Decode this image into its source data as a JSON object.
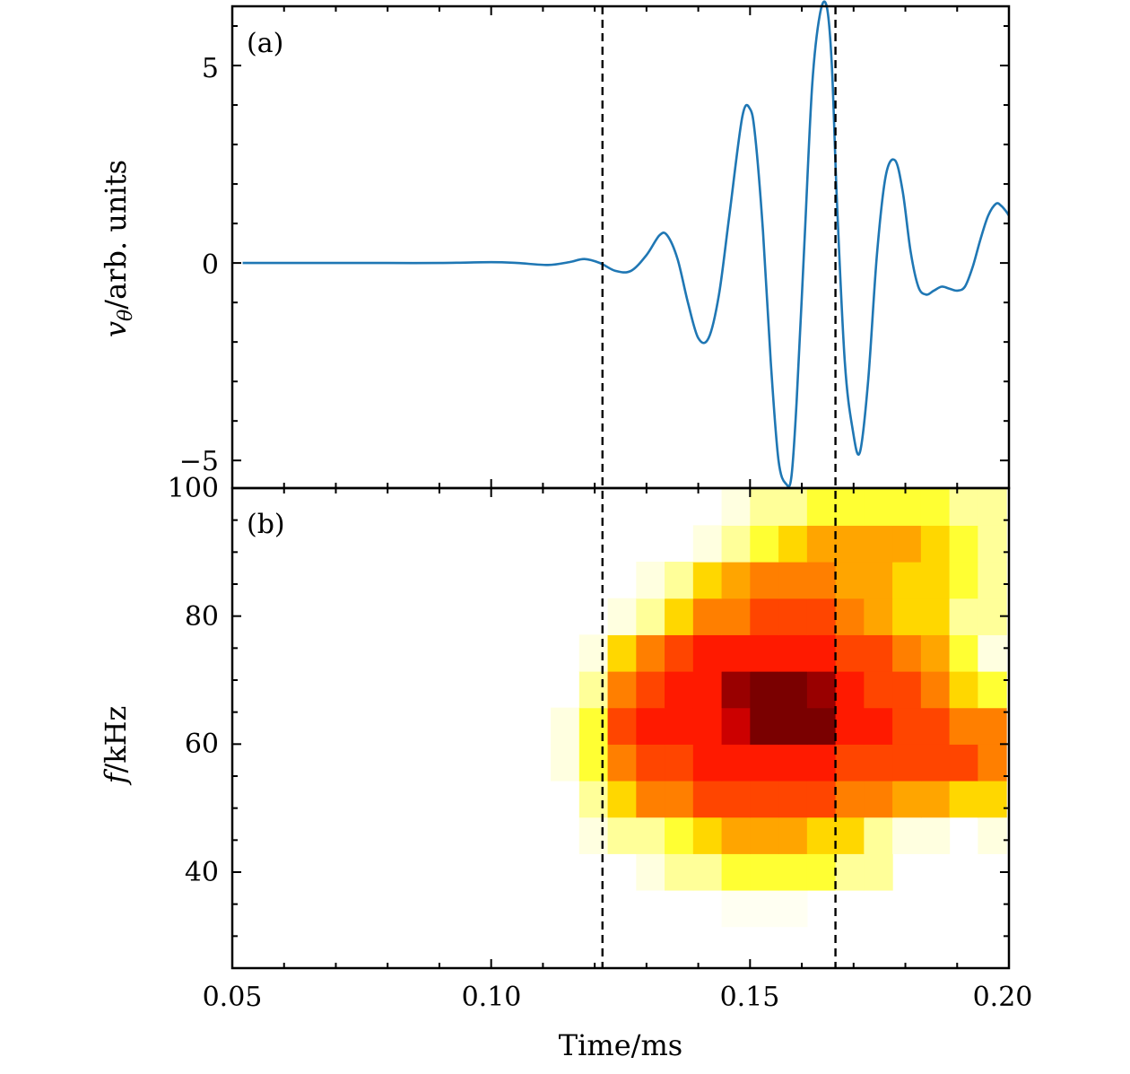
{
  "chart_data": [
    {
      "type": "line",
      "panel_label": "(a)",
      "ylabel_var": "v",
      "ylabel_sub": "θ",
      "ylabel_rest": "/arb. units",
      "xlim": [
        0.05,
        0.2
      ],
      "ylim": [
        -5.7,
        6.5
      ],
      "yticks": [
        {
          "value": 5,
          "label": "5"
        },
        {
          "value": 0,
          "label": "0"
        },
        {
          "value": -5,
          "label": "−5"
        }
      ],
      "line_color": "#1f77b4",
      "series": [
        {
          "name": "v_theta",
          "x": [
            0.052,
            0.06,
            0.07,
            0.08,
            0.09,
            0.1,
            0.105,
            0.111,
            0.115,
            0.118,
            0.121,
            0.124,
            0.127,
            0.13,
            0.1325,
            0.134,
            0.136,
            0.138,
            0.14,
            0.142,
            0.144,
            0.146,
            0.1485,
            0.15,
            0.151,
            0.1525,
            0.154,
            0.1555,
            0.157,
            0.158,
            0.159,
            0.1605,
            0.162,
            0.1635,
            0.1648,
            0.1658,
            0.1668,
            0.1683,
            0.1698,
            0.1712,
            0.1728,
            0.1745,
            0.1762,
            0.178,
            0.1795,
            0.181,
            0.1825,
            0.184,
            0.1855,
            0.187,
            0.1885,
            0.19,
            0.1915,
            0.193,
            0.1945,
            0.196,
            0.1975,
            0.1985,
            0.1995,
            0.2
          ],
          "y": [
            0.0,
            0.0,
            0.0,
            0.0,
            0.0,
            0.02,
            0.0,
            -0.05,
            0.02,
            0.1,
            0.0,
            -0.2,
            -0.2,
            0.2,
            0.7,
            0.7,
            0.1,
            -1.0,
            -1.9,
            -1.9,
            -0.8,
            1.2,
            3.7,
            3.9,
            3.2,
            0.8,
            -2.5,
            -5.0,
            -5.6,
            -5.4,
            -3.5,
            0.5,
            4.5,
            6.3,
            6.5,
            5.0,
            1.5,
            -2.5,
            -4.2,
            -4.8,
            -3.0,
            0.2,
            2.2,
            2.6,
            1.8,
            0.3,
            -0.6,
            -0.8,
            -0.7,
            -0.6,
            -0.65,
            -0.7,
            -0.6,
            -0.1,
            0.6,
            1.2,
            1.5,
            1.45,
            1.3,
            1.2
          ]
        }
      ],
      "vlines": [
        0.1215,
        0.1665
      ]
    },
    {
      "type": "heatmap",
      "panel_label": "(b)",
      "ylabel_var": "f",
      "ylabel_rest": "/kHz",
      "xlabel": "Time/ms",
      "xlim": [
        0.05,
        0.2
      ],
      "ylim": [
        25,
        100
      ],
      "x_edges": [
        0.1115,
        0.117,
        0.1225,
        0.128,
        0.1335,
        0.139,
        0.1445,
        0.15,
        0.1555,
        0.161,
        0.1665,
        0.172,
        0.1775,
        0.183,
        0.1885,
        0.194,
        0.1995
      ],
      "y_edges": [
        31.5,
        37.2,
        42.9,
        48.6,
        54.3,
        60.0,
        65.7,
        71.4,
        77.1,
        82.8,
        88.5,
        94.2,
        99.9
      ],
      "colormap": [
        "#ffffff",
        "#ffffe0",
        "#ffff99",
        "#ffff33",
        "#ffd700",
        "#ffa500",
        "#ff7f00",
        "#ff4500",
        "#ff1a00",
        "#cc0000",
        "#990000",
        "#7a0000"
      ],
      "z": [
        [
          0,
          0,
          0,
          0,
          0,
          0,
          0.4,
          0.4,
          0.4,
          0,
          0,
          0,
          0,
          0,
          0,
          0
        ],
        [
          0,
          0,
          0,
          1,
          2,
          2,
          3,
          3,
          3,
          3,
          2,
          2,
          0,
          0,
          0,
          0
        ],
        [
          0,
          1,
          2,
          2,
          3,
          4,
          5,
          5,
          5,
          4,
          4,
          2,
          1,
          1,
          0,
          1
        ],
        [
          0,
          2,
          4,
          6,
          6,
          7,
          7,
          7,
          7,
          7,
          6,
          6,
          5,
          5,
          4,
          4
        ],
        [
          1,
          3,
          6,
          7,
          7,
          8,
          8,
          8,
          8,
          8,
          7,
          7,
          7,
          7,
          7,
          6
        ],
        [
          1,
          3,
          7,
          8,
          8,
          8,
          9,
          11,
          11,
          11,
          8,
          8,
          7,
          7,
          6,
          6
        ],
        [
          0,
          2,
          6,
          7,
          8,
          8,
          10,
          11,
          11,
          10,
          8,
          7,
          7,
          6,
          4,
          3
        ],
        [
          0,
          1,
          4,
          6,
          7,
          8,
          8,
          8,
          8,
          8,
          7,
          7,
          6,
          5,
          3,
          1
        ],
        [
          0,
          0,
          1,
          2,
          4,
          6,
          6,
          7,
          7,
          7,
          6,
          5,
          4,
          4,
          2,
          2
        ],
        [
          0,
          0,
          0,
          1,
          2,
          4,
          5,
          6,
          6,
          6,
          5,
          5,
          4,
          4,
          3,
          2
        ],
        [
          0,
          0,
          0,
          0,
          0,
          1,
          2,
          3,
          4,
          5,
          5,
          5,
          5,
          4,
          3,
          2
        ],
        [
          0,
          0,
          0,
          0,
          0,
          0,
          1,
          2,
          2,
          3,
          3,
          3,
          3,
          3,
          2,
          2
        ]
      ],
      "yticks": [
        {
          "value": 100,
          "label": "100"
        },
        {
          "value": 80,
          "label": "80"
        },
        {
          "value": 60,
          "label": "60"
        },
        {
          "value": 40,
          "label": "40"
        }
      ],
      "xticks": [
        {
          "value": 0.05,
          "label": "0.05"
        },
        {
          "value": 0.1,
          "label": "0.10"
        },
        {
          "value": 0.15,
          "label": "0.15"
        },
        {
          "value": 0.2,
          "label": "0.20"
        }
      ],
      "vlines": [
        0.1215,
        0.1665
      ]
    }
  ]
}
